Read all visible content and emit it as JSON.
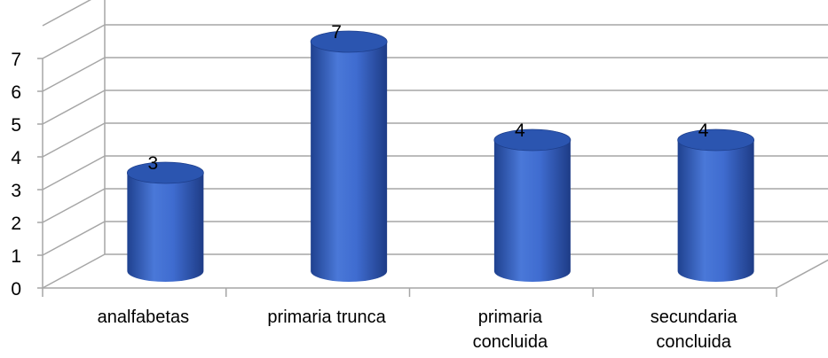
{
  "chart_data": {
    "type": "bar",
    "style": "3d-cylinder",
    "categories": [
      [
        "analfabetas"
      ],
      [
        "primaria trunca"
      ],
      [
        "primaria",
        "concluida"
      ],
      [
        "secundaria",
        "concluida"
      ]
    ],
    "values": [
      3,
      7,
      4,
      4
    ],
    "data_labels": [
      "3",
      "7",
      "4",
      "4"
    ],
    "ylim": [
      0,
      7
    ],
    "yticks": [
      "0",
      "1",
      "2",
      "3",
      "4",
      "5",
      "6",
      "7"
    ],
    "grid": true,
    "legend": "none",
    "colors": {
      "bar": "#3a66c4",
      "bar_light": "#6a93e6",
      "bar_dark": "#1e3f8c",
      "bar_top": "#2b55b0",
      "grid": "#a6a6a6"
    }
  }
}
